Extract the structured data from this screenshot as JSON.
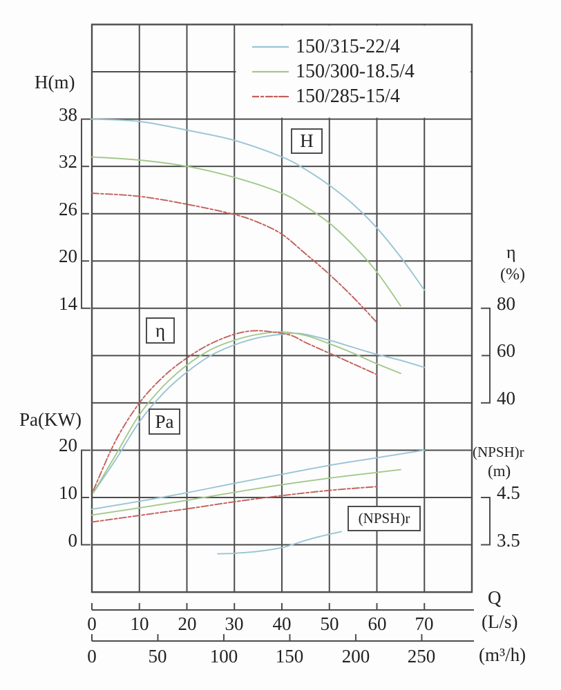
{
  "labels": {
    "h_axis": "H(m)",
    "pa_axis": "Pa(KW)",
    "eta_axis": "η",
    "eta_unit": "(%)",
    "npsh_axis": "(NPSH)r",
    "npsh_unit": "(m)",
    "q_axis": "Q",
    "ls_unit": "(L/s)",
    "m3h_unit": "(m³/h)",
    "box_h": "H",
    "box_eta": "η",
    "box_pa": "Pa",
    "box_npsh": "(NPSH)r"
  },
  "legend": {
    "items": [
      {
        "label": "150/315-22/4",
        "color": "#9ac4d4",
        "dashed": false
      },
      {
        "label": "150/300-18.5/4",
        "color": "#a3c98b",
        "dashed": false
      },
      {
        "label": "150/285-15/4",
        "color": "#c1605a",
        "dashed": true
      }
    ]
  },
  "chart_data": {
    "type": "line",
    "title": "Pump performance curves",
    "grid": "on",
    "x_axis": {
      "name": "Q",
      "scales": [
        {
          "unit": "(L/s)",
          "ticks": [
            0,
            10,
            20,
            30,
            40,
            50,
            60,
            70
          ],
          "range": [
            0,
            80
          ]
        },
        {
          "unit": "(m³/h)",
          "ticks": [
            0,
            50,
            100,
            150,
            200,
            250
          ]
        }
      ]
    },
    "y_axes": [
      {
        "id": "H",
        "label": "H(m)",
        "unit": "m",
        "side": "left",
        "ticks": [
          38,
          32,
          26,
          20,
          14
        ]
      },
      {
        "id": "eta",
        "label": "η",
        "unit": "%",
        "side": "right",
        "ticks": [
          80,
          60,
          40
        ]
      },
      {
        "id": "Pa",
        "label": "Pa(KW)",
        "unit": "KW",
        "side": "left",
        "ticks": [
          20,
          10,
          0
        ]
      },
      {
        "id": "NPSH",
        "label": "(NPSH)r",
        "unit": "m",
        "side": "right",
        "ticks": [
          4.5,
          3.5
        ]
      }
    ],
    "models": [
      "150/315-22/4",
      "150/300-18.5/4",
      "150/285-15/4"
    ],
    "series": [
      {
        "model": "150/315-22/4",
        "quantity": "H",
        "axis": "H",
        "color": "#9ac4d4",
        "dashed": false,
        "points": [
          [
            0,
            38
          ],
          [
            10,
            37.7
          ],
          [
            20,
            36.6
          ],
          [
            30,
            35.3
          ],
          [
            40,
            33.2
          ],
          [
            45,
            31.6
          ],
          [
            50,
            29.6
          ],
          [
            55,
            27.2
          ],
          [
            60,
            24.2
          ],
          [
            65,
            20.5
          ],
          [
            70,
            16.3
          ]
        ]
      },
      {
        "model": "150/300-18.5/4",
        "quantity": "H",
        "axis": "H",
        "color": "#a3c98b",
        "dashed": false,
        "points": [
          [
            0,
            33.2
          ],
          [
            10,
            32.8
          ],
          [
            20,
            32.0
          ],
          [
            30,
            30.6
          ],
          [
            40,
            28.6
          ],
          [
            45,
            26.9
          ],
          [
            50,
            24.8
          ],
          [
            55,
            22.0
          ],
          [
            60,
            18.6
          ],
          [
            65,
            14.3
          ]
        ]
      },
      {
        "model": "150/285-15/4",
        "quantity": "H",
        "axis": "H",
        "color": "#c1605a",
        "dashed": true,
        "points": [
          [
            0,
            28.6
          ],
          [
            10,
            28.2
          ],
          [
            20,
            27.2
          ],
          [
            30,
            25.9
          ],
          [
            35,
            24.9
          ],
          [
            40,
            23.4
          ],
          [
            45,
            20.9
          ],
          [
            50,
            18.3
          ],
          [
            55,
            15.4
          ],
          [
            60,
            12.2
          ]
        ]
      },
      {
        "model": "150/315-22/4",
        "quantity": "eta",
        "axis": "eta",
        "color": "#9ac4d4",
        "dashed": false,
        "points": [
          [
            0.3,
            2
          ],
          [
            5,
            16
          ],
          [
            10,
            32
          ],
          [
            15,
            44
          ],
          [
            20,
            53
          ],
          [
            25,
            60
          ],
          [
            30,
            64.5
          ],
          [
            35,
            67.5
          ],
          [
            40,
            69
          ],
          [
            44,
            69.3
          ],
          [
            50,
            66.5
          ],
          [
            55,
            63.5
          ],
          [
            60,
            60.5
          ],
          [
            65,
            58
          ],
          [
            70,
            55
          ]
        ]
      },
      {
        "model": "150/300-18.5/4",
        "quantity": "eta",
        "axis": "eta",
        "color": "#a3c98b",
        "dashed": false,
        "points": [
          [
            0.3,
            2
          ],
          [
            5,
            18
          ],
          [
            10,
            35
          ],
          [
            15,
            47
          ],
          [
            20,
            56
          ],
          [
            25,
            62.5
          ],
          [
            30,
            66.5
          ],
          [
            35,
            69
          ],
          [
            40,
            70
          ],
          [
            45,
            68.5
          ],
          [
            50,
            65
          ],
          [
            55,
            61
          ],
          [
            60,
            56.5
          ],
          [
            65,
            52.5
          ]
        ]
      },
      {
        "model": "150/285-15/4",
        "quantity": "eta",
        "axis": "eta",
        "color": "#c1605a",
        "dashed": true,
        "points": [
          [
            0.3,
            3
          ],
          [
            5,
            24
          ],
          [
            10,
            40
          ],
          [
            15,
            51
          ],
          [
            20,
            59
          ],
          [
            25,
            65
          ],
          [
            30,
            69
          ],
          [
            34,
            70.5
          ],
          [
            38,
            70
          ],
          [
            42,
            68.5
          ],
          [
            45,
            65.5
          ],
          [
            50,
            61
          ],
          [
            55,
            56.5
          ],
          [
            60,
            52
          ]
        ]
      },
      {
        "model": "150/315-22/4",
        "quantity": "Pa",
        "axis": "Pa",
        "color": "#9ac4d4",
        "dashed": false,
        "points": [
          [
            0,
            7.5
          ],
          [
            10,
            9.2
          ],
          [
            20,
            11.0
          ],
          [
            30,
            13.0
          ],
          [
            40,
            14.9
          ],
          [
            50,
            16.8
          ],
          [
            60,
            18.4
          ],
          [
            70,
            20.0
          ]
        ]
      },
      {
        "model": "150/300-18.5/4",
        "quantity": "Pa",
        "axis": "Pa",
        "color": "#a3c98b",
        "dashed": false,
        "points": [
          [
            0,
            6.3
          ],
          [
            10,
            7.8
          ],
          [
            20,
            9.4
          ],
          [
            30,
            11.1
          ],
          [
            40,
            12.7
          ],
          [
            50,
            14.1
          ],
          [
            60,
            15.3
          ],
          [
            65,
            15.9
          ]
        ]
      },
      {
        "model": "150/285-15/4",
        "quantity": "Pa",
        "axis": "Pa",
        "color": "#c1605a",
        "dashed": true,
        "points": [
          [
            0,
            4.8
          ],
          [
            10,
            6.2
          ],
          [
            20,
            7.6
          ],
          [
            30,
            9.1
          ],
          [
            40,
            10.4
          ],
          [
            50,
            11.5
          ],
          [
            60,
            12.3
          ]
        ]
      },
      {
        "model": "150/315-22/4",
        "quantity": "NPSH",
        "axis": "NPSH",
        "color": "#9ac4d4",
        "dashed": false,
        "points": [
          [
            26.5,
            3.31
          ],
          [
            30,
            3.32
          ],
          [
            35,
            3.36
          ],
          [
            40,
            3.44
          ],
          [
            43,
            3.53
          ],
          [
            47,
            3.65
          ],
          [
            52.5,
            3.78
          ]
        ]
      }
    ],
    "annotations": [
      "H",
      "η",
      "Pa",
      "(NPSH)r"
    ]
  }
}
